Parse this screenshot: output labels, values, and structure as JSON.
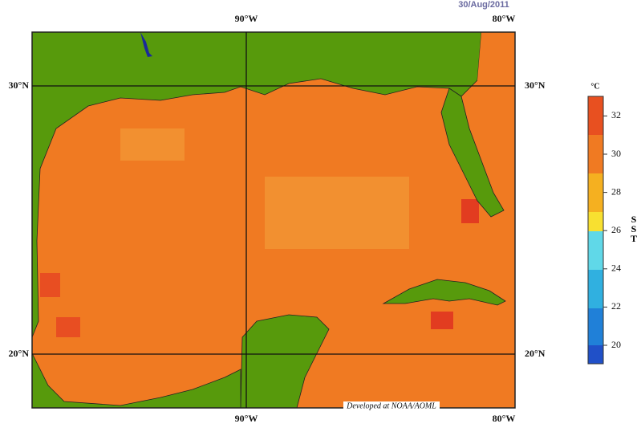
{
  "header": {
    "date": "30/Aug/2011"
  },
  "map": {
    "longitude_labels": [
      "90°W",
      "80°W"
    ],
    "latitude_labels": [
      "30°N",
      "20°N"
    ],
    "credit": "Developed at NOAA/AOML"
  },
  "colorbar": {
    "unit": "°C",
    "title": "SST",
    "ticks": [
      20,
      22,
      24,
      26,
      28,
      30,
      32
    ]
  }
}
